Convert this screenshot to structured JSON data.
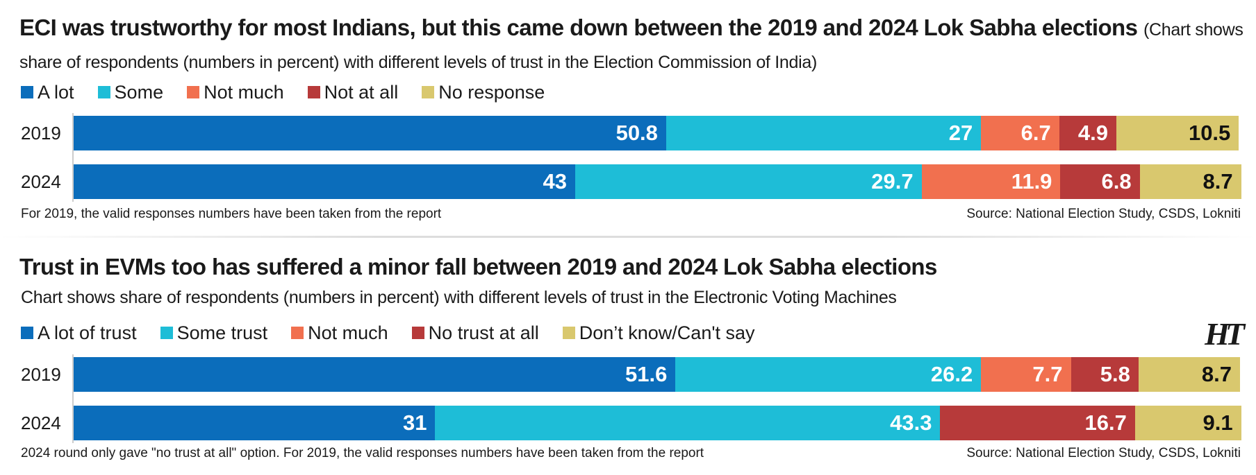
{
  "logo": "HT",
  "chart_data": [
    {
      "type": "stacked-bar-horizontal",
      "title": "ECI was trustworthy for most Indians, but this came down between the 2019 and 2024 Lok Sabha elections",
      "subtitle": "(Chart shows share of respondents (numbers in percent) with different levels of trust in the Election Commission of India)",
      "categories": [
        "2019",
        "2024"
      ],
      "xlim": [
        0,
        100
      ],
      "series": [
        {
          "name": "A lot",
          "color": "#0b6dbb",
          "values": [
            50.8,
            43
          ]
        },
        {
          "name": "Some",
          "color": "#1ebdd7",
          "values": [
            27,
            29.7
          ]
        },
        {
          "name": "Not much",
          "color": "#f1704f",
          "values": [
            6.7,
            11.9
          ]
        },
        {
          "name": "Not at all",
          "color": "#b73a3a",
          "values": [
            4.9,
            6.8
          ]
        },
        {
          "name": "No response",
          "color": "#d9c86e",
          "values": [
            10.5,
            8.7
          ]
        }
      ],
      "note": "For 2019, the valid responses numbers have been taken from the report",
      "source": "Source: National Election Study, CSDS, Lokniti"
    },
    {
      "type": "stacked-bar-horizontal",
      "title": "Trust in EVMs too has suffered a minor fall between 2019 and 2024 Lok Sabha elections",
      "subtitle": "Chart shows share of respondents (numbers in percent) with different levels of trust in the Electronic Voting Machines",
      "categories": [
        "2019",
        "2024"
      ],
      "xlim": [
        0,
        100
      ],
      "series": [
        {
          "name": "A lot of trust",
          "color": "#0b6dbb",
          "values": [
            51.6,
            31
          ]
        },
        {
          "name": "Some trust",
          "color": "#1ebdd7",
          "values": [
            26.2,
            43.3
          ]
        },
        {
          "name": "Not much",
          "color": "#f1704f",
          "values": [
            7.7,
            null
          ]
        },
        {
          "name": "No trust at all",
          "color": "#b73a3a",
          "values": [
            5.8,
            16.7
          ]
        },
        {
          "name": "Don’t know/Can't say",
          "color": "#d9c86e",
          "values": [
            8.7,
            9.1
          ]
        }
      ],
      "note": "2024 round only gave \"no trust at all\" option. For 2019, the valid responses numbers have been taken from the report",
      "source": "Source: National Election Study, CSDS, Lokniti"
    }
  ]
}
